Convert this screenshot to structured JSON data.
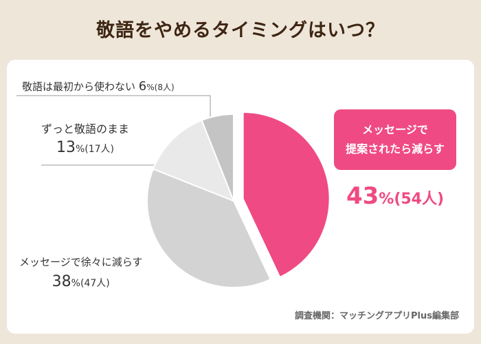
{
  "title": "敬語をやめるタイミングはいつ？",
  "source": "調査機関：マッチングアプリPlus編集部",
  "colors": {
    "accent": "#ef4a83",
    "slice_mid": "#d3d3d3",
    "slice_light": "#e9e9e9",
    "slice_dark": "#c4c4c4"
  },
  "chart_data": {
    "type": "pie",
    "title": "敬語をやめるタイミングはいつ？",
    "slices": [
      {
        "label_lines": [
          "メッセージで",
          "提案されたら減らす"
        ],
        "pct_value": "43",
        "pct_unit": "%",
        "count": "(54人)",
        "value": 43,
        "color": "#ef4a83",
        "exploded": true
      },
      {
        "label": "メッセージで徐々に減らす",
        "pct_value": "38",
        "pct_unit": "%",
        "count": "(47人)",
        "value": 38,
        "color": "#d3d3d3"
      },
      {
        "label": "ずっと敬語のまま",
        "pct_value": "13",
        "pct_unit": "%",
        "count": "(17人)",
        "value": 13,
        "color": "#e9e9e9"
      },
      {
        "label": "敬語は最初から使わない",
        "pct_value": "6",
        "pct_unit": "%",
        "count": "(8人)",
        "value": 6,
        "color": "#c4c4c4"
      }
    ]
  }
}
